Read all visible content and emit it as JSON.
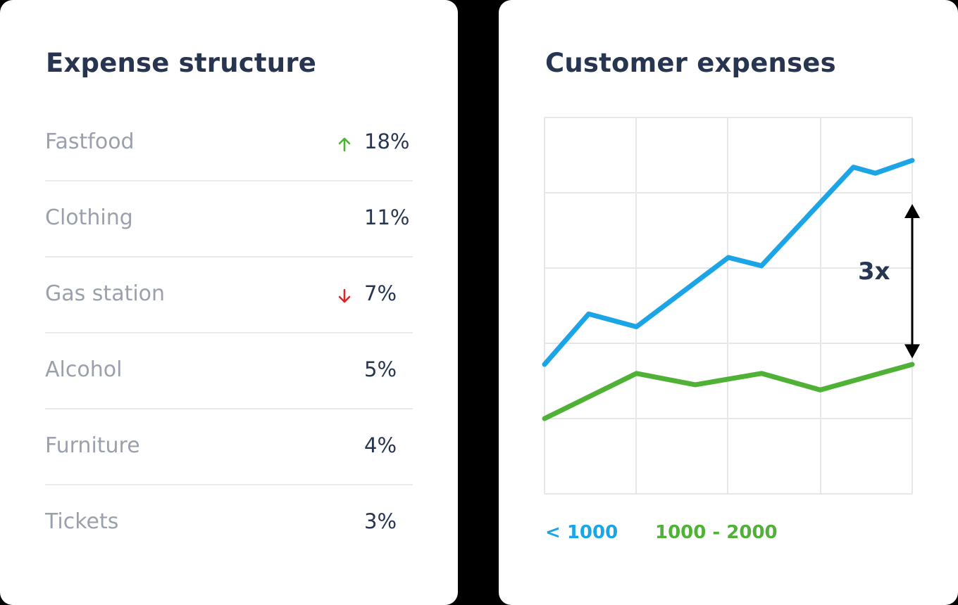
{
  "expense_structure": {
    "title": "Expense structure",
    "items": [
      {
        "name": "Fastfood",
        "value": "18%",
        "trend": "up"
      },
      {
        "name": "Clothing",
        "value": "11%",
        "trend": "none"
      },
      {
        "name": "Gas station",
        "value": "7%",
        "trend": "down"
      },
      {
        "name": "Alcohol",
        "value": "5%",
        "trend": "none"
      },
      {
        "name": "Furniture",
        "value": "4%",
        "trend": "none"
      },
      {
        "name": "Tickets",
        "value": "3%",
        "trend": "none"
      }
    ]
  },
  "colors": {
    "title": "#283550",
    "label": "#9aa0ac",
    "up": "#4fb135",
    "down": "#e02424",
    "series_a": "#1ba4e6",
    "series_b": "#4fb135",
    "grid": "#e6e7ea"
  },
  "chart_data": {
    "type": "line",
    "title": "Customer expenses",
    "xlabel": "",
    "ylabel": "",
    "x": [
      0,
      0.12,
      0.25,
      0.41,
      0.5,
      0.59,
      0.75,
      0.84,
      0.9,
      1.0
    ],
    "xlim": [
      0,
      1
    ],
    "ylim": [
      0,
      5
    ],
    "grid": true,
    "legend_position": "bottom-left",
    "series": [
      {
        "name": "< 1000",
        "color": "#1ba4e6",
        "x": [
          0,
          0.12,
          0.25,
          0.5,
          0.59,
          0.84,
          0.9,
          1.0
        ],
        "values": [
          1.72,
          2.39,
          2.22,
          3.14,
          3.03,
          4.34,
          4.26,
          4.43
        ]
      },
      {
        "name": "1000 - 2000",
        "color": "#4fb135",
        "x": [
          0,
          0.25,
          0.41,
          0.59,
          0.75,
          1.0
        ],
        "values": [
          1.0,
          1.6,
          1.45,
          1.6,
          1.38,
          1.72
        ]
      }
    ],
    "annotation": {
      "text": "3x",
      "x": 1.0,
      "y_from": 1.8,
      "y_to": 3.85
    }
  }
}
